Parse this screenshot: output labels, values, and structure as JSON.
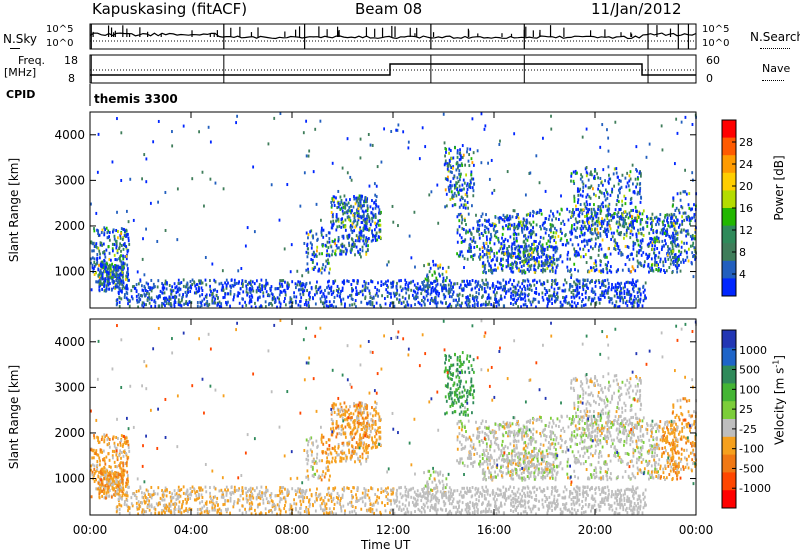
{
  "header": {
    "station": "Kapuskasing (fitACF)",
    "beam": "Beam 08",
    "date": "11/Jan/2012"
  },
  "panels": {
    "nsky_label": "N.Sky",
    "nsearch_label": "N.Search",
    "freq_label": "Freq.",
    "freq_unit": "[MHz]",
    "nave_label": "Nave",
    "cpid_label": "CPID",
    "cpid_value": "themis 3300",
    "noise_ticks": [
      "10^5",
      "10^0"
    ],
    "noise_ticks_right": [
      "10^5",
      "10^0"
    ],
    "freq_ticks": [
      "18",
      "8"
    ],
    "nave_ticks": [
      "60",
      "0"
    ]
  },
  "chart_data": [
    {
      "type": "heatmap",
      "name": "power",
      "ylabel": "Slant Range [km]",
      "yticks": [
        1000,
        2000,
        3000,
        4000
      ],
      "ylim": [
        200,
        4500
      ],
      "colorbar_label": "Power [dB]",
      "colorbar_ticks": [
        "28",
        "24",
        "20",
        "16",
        "12",
        "8",
        "4"
      ],
      "colorbar_colors": [
        "#ff0000",
        "#ff5a00",
        "#ff9b00",
        "#ffce00",
        "#b4dc00",
        "#22b700",
        "#2f8a5a",
        "#3f7d5a",
        "#225fbe",
        "#0026ff"
      ]
    },
    {
      "type": "heatmap",
      "name": "velocity",
      "ylabel": "Slant Range [km]",
      "yticks": [
        1000,
        2000,
        3000,
        4000
      ],
      "ylim": [
        200,
        4500
      ],
      "colorbar_label": "Velocity [m s",
      "colorbar_label_sup": "-1",
      "colorbar_label_end": "]",
      "colorbar_ticks": [
        "1000",
        "500",
        "100",
        "25",
        "-25",
        "-100",
        "-500",
        "-1000"
      ],
      "colorbar_colors": [
        "#2236b4",
        "#1e64c8",
        "#2f8a5a",
        "#44b534",
        "#7ccd3a",
        "#bebebe",
        "#f5a01e",
        "#f07814",
        "#ff4600",
        "#ff0000"
      ]
    }
  ],
  "time_axis": {
    "label": "Time UT",
    "ticks": [
      "00:00",
      "04:00",
      "08:00",
      "12:00",
      "16:00",
      "20:00",
      "00:00"
    ]
  }
}
